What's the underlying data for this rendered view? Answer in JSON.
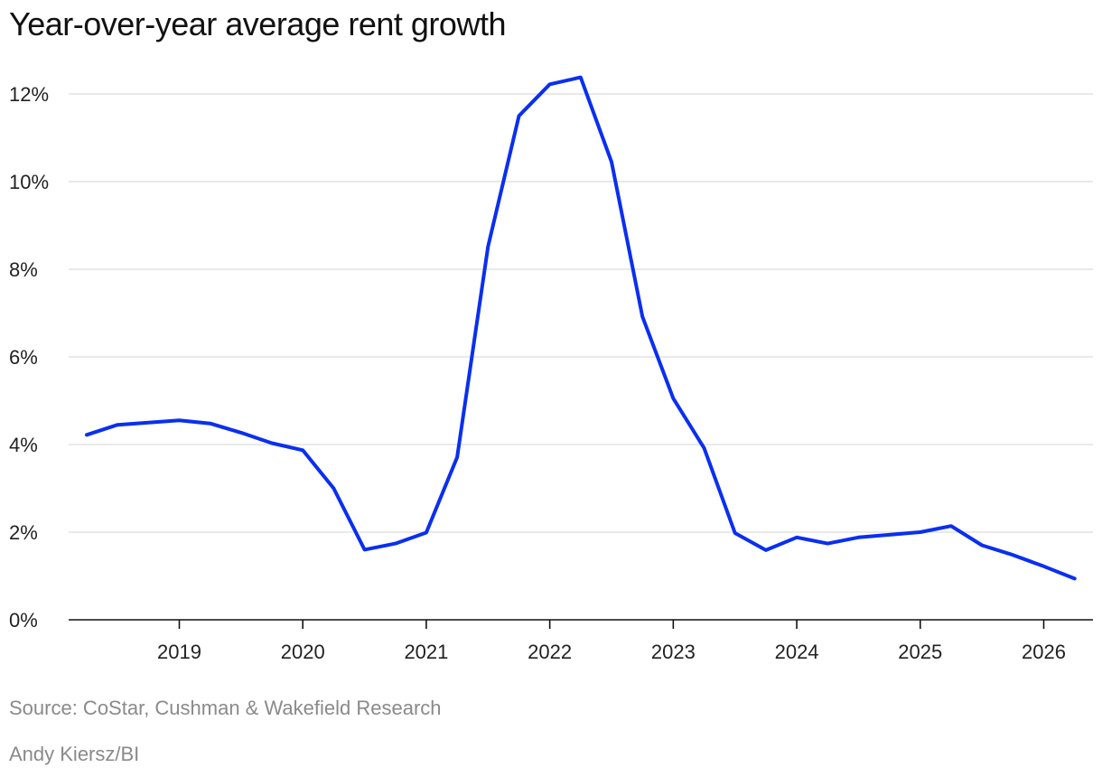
{
  "title": "Year-over-year average rent growth",
  "source": "Source: CoStar, Cushman & Wakefield Research",
  "credit": "Andy Kiersz/BI",
  "colors": {
    "line": "#0a2ff0",
    "grid": "#dcdcdc",
    "axis": "#111111",
    "note": "#8a8a8a"
  },
  "chart_data": {
    "type": "line",
    "title": "Year-over-year average rent growth",
    "xlabel": "",
    "ylabel": "",
    "ylim": [
      0,
      12.5
    ],
    "xlim": [
      2018.25,
      2026.4
    ],
    "y_ticks": [
      0,
      2,
      4,
      6,
      8,
      10,
      12
    ],
    "y_tick_labels": [
      "0%",
      "2%",
      "4%",
      "6%",
      "8%",
      "10%",
      "12%"
    ],
    "x_ticks": [
      2019,
      2020,
      2021,
      2022,
      2023,
      2024,
      2025,
      2026
    ],
    "x_tick_labels": [
      "2019",
      "2020",
      "2021",
      "2022",
      "2023",
      "2024",
      "2025",
      "2026"
    ],
    "grid": true,
    "legend": "none",
    "series": [
      {
        "x": [
          2018.25,
          2018.5,
          2018.75,
          2019.0,
          2019.25,
          2019.5,
          2019.75,
          2020.0,
          2020.25,
          2020.5,
          2020.75,
          2021.0,
          2021.25,
          2021.5,
          2021.75,
          2022.0,
          2022.25,
          2022.5,
          2022.75,
          2023.0,
          2023.25,
          2023.5,
          2023.75,
          2024.0,
          2024.25,
          2024.5,
          2024.75,
          2025.0,
          2025.25,
          2025.5,
          2025.75,
          2026.0,
          2026.25
        ],
        "values": [
          4.22,
          4.45,
          4.5,
          4.55,
          4.48,
          4.27,
          4.03,
          3.87,
          3.0,
          1.6,
          1.74,
          1.99,
          3.71,
          8.52,
          11.5,
          12.22,
          12.38,
          10.45,
          6.92,
          5.05,
          3.92,
          1.98,
          1.59,
          1.88,
          1.74,
          1.88,
          1.94,
          2.0,
          2.14,
          1.7,
          1.48,
          1.22,
          0.94
        ]
      }
    ]
  }
}
